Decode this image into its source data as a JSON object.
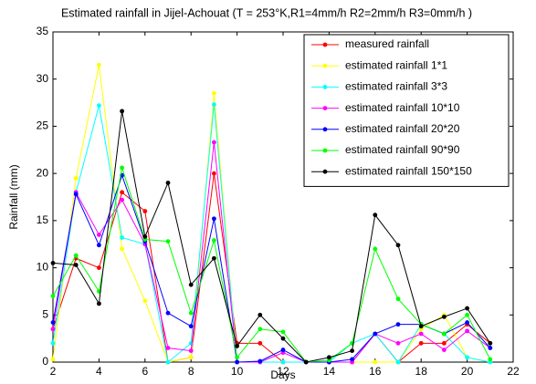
{
  "chart_data": {
    "type": "line",
    "title": "Estimated rainfall in Jijel-Achouat (T = 253°K,R1=4mm/h  R2=2mm/h  R3=0mm/h )",
    "x_label": "Days",
    "y_label": "Rainfall (mm)",
    "x": [
      2,
      3,
      4,
      5,
      6,
      7,
      8,
      9,
      10,
      11,
      12,
      13,
      14,
      15,
      16,
      17,
      18,
      19,
      20,
      21
    ],
    "xlim": [
      2,
      22
    ],
    "xticks": [
      2,
      4,
      6,
      8,
      10,
      12,
      14,
      16,
      18,
      20,
      22
    ],
    "ylim": [
      0,
      35
    ],
    "yticks": [
      0,
      5,
      10,
      15,
      20,
      25,
      30,
      35
    ],
    "grid": false,
    "legend": "upper right",
    "series": [
      {
        "name": "measured rainfall",
        "color": "#ff0000",
        "values": [
          3.5,
          11,
          10,
          18,
          16,
          0,
          0.5,
          20,
          2,
          2,
          0,
          0,
          0,
          0,
          3,
          0,
          2,
          2,
          4,
          2
        ]
      },
      {
        "name": "estimated rainfall 1*1",
        "color": "#ffff00",
        "values": [
          0.3,
          19.5,
          31.5,
          12,
          6.5,
          0,
          0.5,
          28.5,
          0,
          0,
          0,
          0,
          0,
          0,
          0,
          0,
          3.5,
          5,
          0.5,
          0
        ]
      },
      {
        "name": "estimated rainfall 3*3",
        "color": "#00ffff",
        "values": [
          2,
          18,
          27.2,
          13.2,
          12.5,
          0,
          2,
          27.3,
          0,
          0,
          0,
          0,
          0,
          2,
          3,
          0,
          4,
          3,
          0.5,
          0
        ]
      },
      {
        "name": "estimated rainfall 10*10",
        "color": "#ff00ff",
        "values": [
          3.5,
          18,
          13.5,
          17.2,
          12.5,
          1.5,
          1.2,
          23.3,
          0,
          0,
          1,
          0,
          0,
          0,
          3,
          2,
          3,
          1.3,
          3.3,
          1.5
        ]
      },
      {
        "name": "estimated rainfall 20*20",
        "color": "#0000ff",
        "values": [
          4.2,
          17.8,
          12.4,
          19.8,
          12.8,
          5.2,
          3.8,
          15.2,
          0,
          0.1,
          1.3,
          0,
          0,
          0.3,
          3,
          4,
          4,
          3,
          4.2,
          1.5
        ]
      },
      {
        "name": "estimated rainfall 90*90",
        "color": "#00ff00",
        "values": [
          7,
          11.3,
          7.5,
          20.6,
          13,
          12.8,
          5.2,
          12.9,
          0.5,
          3.5,
          3.2,
          0,
          0.2,
          2,
          12,
          6.7,
          4,
          3,
          5,
          0.3
        ]
      },
      {
        "name": "estimated rainfall 150*150",
        "color": "#000000",
        "values": [
          10.5,
          10.3,
          6.2,
          26.6,
          13.3,
          19,
          8.2,
          11,
          1.7,
          5,
          2.5,
          0,
          0.5,
          1.2,
          15.6,
          12.4,
          3.8,
          4.8,
          5.7,
          2
        ]
      }
    ]
  }
}
